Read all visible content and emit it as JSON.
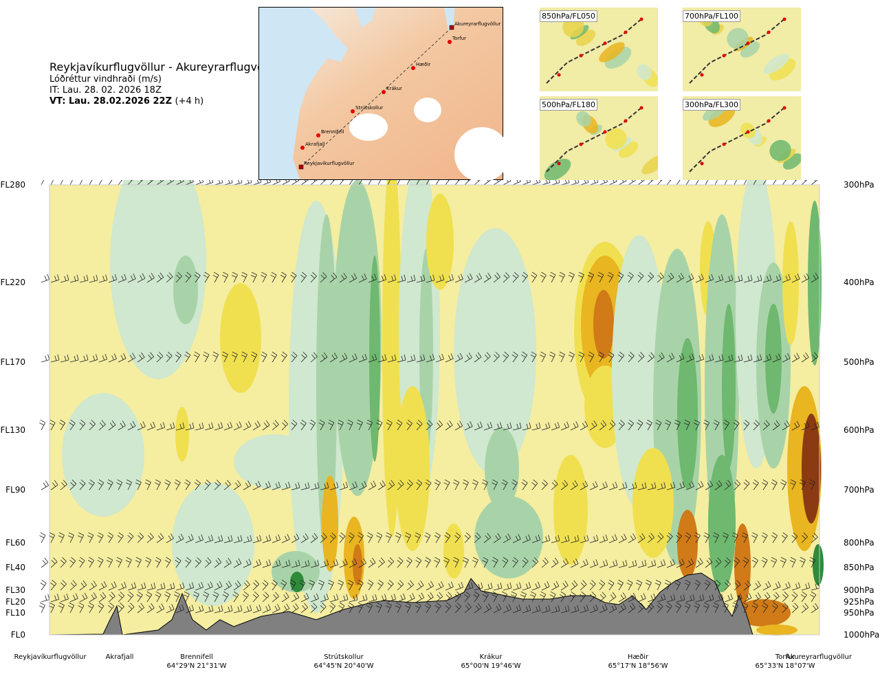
{
  "header": {
    "title": "Reykjavíkurflugvöllur - Akureyrarflugvöllur",
    "subtitle": "Lóðréttur vindhraði (m/s)",
    "issue_time": "IT: Lau. 28. 02. 2026 18Z",
    "valid_time": "VT: Lau. 28.02.2026 22Z",
    "lead_time": "(+4 h)"
  },
  "map": {
    "waypoints": [
      "Akureyrarflugvöllur",
      "Torfur",
      "Hæðir",
      "Krákur",
      "Strútskollur",
      "Brennifell",
      "Akrafjall",
      "Reykjavíkurflugvöllur"
    ]
  },
  "mini_maps": [
    "850hPa/FL050",
    "700hPa/FL100",
    "500hPa/FL180",
    "300hPa/FL300"
  ],
  "chart_data": {
    "type": "heatmap",
    "title": "Lóðréttur vindhraði (m/s)",
    "left_axis_levels": [
      "FL280",
      "FL220",
      "FL170",
      "FL130",
      "FL90",
      "FL60",
      "FL40",
      "FL30",
      "FL20",
      "FL10",
      "FL0"
    ],
    "right_axis_levels": [
      "300hPa",
      "400hPa",
      "500hPa",
      "600hPa",
      "700hPa",
      "800hPa",
      "850hPa",
      "900hPa",
      "925hPa",
      "950hPa",
      "1000hPa"
    ],
    "flight_levels": [
      280,
      220,
      170,
      130,
      90,
      60,
      40,
      30,
      20,
      10,
      0
    ],
    "pressure_levels": [
      300,
      400,
      500,
      600,
      700,
      800,
      850,
      900,
      925,
      950,
      1000
    ],
    "route_points": [
      {
        "name": "Reykjavíkurflugvöllur",
        "coord": ""
      },
      {
        "name": "Akrafjall",
        "coord": ""
      },
      {
        "name": "Brennifell",
        "coord": "64°29'N 21°31'W"
      },
      {
        "name": "Strútskollur",
        "coord": "64°45'N 20°40'W"
      },
      {
        "name": "Krákur",
        "coord": "65°00'N 19°46'W"
      },
      {
        "name": "Hæðir",
        "coord": "65°17'N 18°56'W"
      },
      {
        "name": "Torfur",
        "coord": "65°33'N 18°07'W"
      },
      {
        "name": "Akureyrarflugvöllur",
        "coord": ""
      }
    ],
    "palette": {
      "strong_up": "#8b3a12",
      "up_2": "#d07a18",
      "up_1": "#e9b520",
      "up_05": "#f0e050",
      "weak_up": "#f5eda0",
      "near_zero": "#fbfbe6",
      "weak_down": "#cfe8cf",
      "down_05": "#a8d3a8",
      "down_1": "#6fb86f",
      "down_2": "#2e8b3a",
      "terrain": "#808080",
      "extreme_down": "#4a7fb5"
    }
  }
}
